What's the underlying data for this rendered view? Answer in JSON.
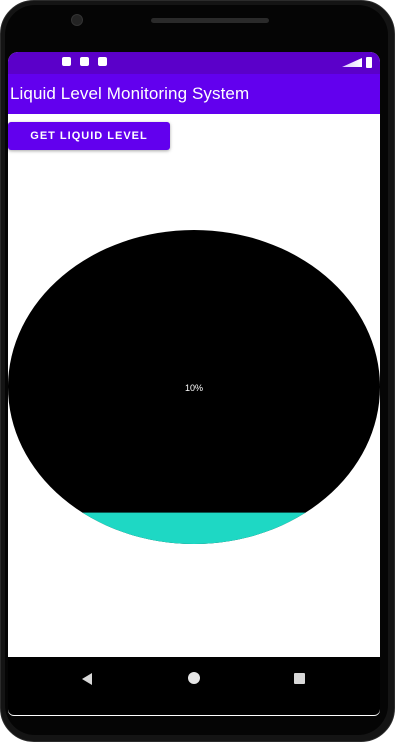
{
  "app": {
    "title": "Liquid Level Monitoring System"
  },
  "controls": {
    "get_level_label": "GET LIQUID LEVEL"
  },
  "gauge": {
    "level_percent": 10,
    "level_label": "10%",
    "background_color": "#000000",
    "liquid_color": "#1ed8c4"
  },
  "theme": {
    "status_bar_color": "#5b00c9",
    "primary_color": "#6200ee"
  },
  "navigation": {
    "back_icon": "back-triangle-icon",
    "home_icon": "home-circle-icon",
    "recents_icon": "recents-square-icon"
  }
}
